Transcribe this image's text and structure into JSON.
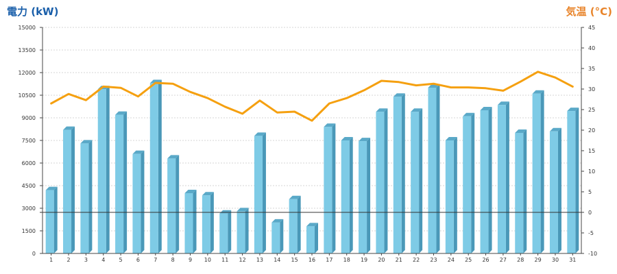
{
  "chart_data": {
    "type": "bar+line",
    "title": "",
    "left_axis": {
      "label": "電力 (kW)",
      "range": [
        0,
        15000
      ],
      "ticks": [
        "0",
        "1500",
        "3000",
        "4500",
        "6000",
        "7500",
        "9000",
        "10500",
        "12000",
        "13500",
        "15000"
      ],
      "tick_values": [
        0,
        1500,
        3000,
        4500,
        6000,
        7500,
        9000,
        10500,
        12000,
        13500,
        15000
      ]
    },
    "right_axis": {
      "label": "気温 (°C)",
      "range": [
        -10,
        45
      ],
      "ticks": [
        "-10",
        "-5",
        "0",
        "5",
        "10",
        "15",
        "20",
        "25",
        "30",
        "35",
        "40",
        "45"
      ],
      "tick_values": [
        -10,
        -5,
        0,
        5,
        10,
        15,
        20,
        25,
        30,
        35,
        40,
        45
      ],
      "zero_line": true
    },
    "categories": [
      "1",
      "2",
      "3",
      "4",
      "5",
      "6",
      "7",
      "8",
      "9",
      "10",
      "11",
      "12",
      "13",
      "14",
      "15",
      "16",
      "17",
      "18",
      "19",
      "20",
      "21",
      "22",
      "23",
      "24",
      "25",
      "26",
      "27",
      "28",
      "29",
      "30",
      "31"
    ],
    "grid": true,
    "series": [
      {
        "kind": "bar3d",
        "axis": "left",
        "color": "#7ecbe6",
        "values": [
          4200,
          8200,
          7300,
          10900,
          9200,
          6600,
          11300,
          6300,
          4000,
          3850,
          2650,
          2800,
          7800,
          2050,
          3600,
          1800,
          8400,
          7500,
          7450,
          9400,
          10400,
          9400,
          11000,
          7500,
          9100,
          9500,
          9850,
          8000,
          10600,
          8100,
          9450
        ]
      },
      {
        "kind": "line",
        "axis": "right",
        "color": "#f5a010",
        "values": [
          26.5,
          28.8,
          27.3,
          30.6,
          30.3,
          28.2,
          31.5,
          31.3,
          29.3,
          27.8,
          25.7,
          24.0,
          27.2,
          24.3,
          24.5,
          22.3,
          26.5,
          27.8,
          29.7,
          32.0,
          31.7,
          30.9,
          31.3,
          30.4,
          30.4,
          30.2,
          29.6,
          31.8,
          34.2,
          32.8,
          30.6
        ]
      }
    ]
  },
  "colors": {
    "left_axis_label": "#1a5faa",
    "right_axis_label": "#e8842a",
    "bar_front": "#7ecbe6",
    "bar_side": "#4a98b8",
    "bar_top": "#5aa9c8",
    "line": "#f5a010",
    "grid": "#c8c8c8",
    "zero_line": "#333333"
  }
}
